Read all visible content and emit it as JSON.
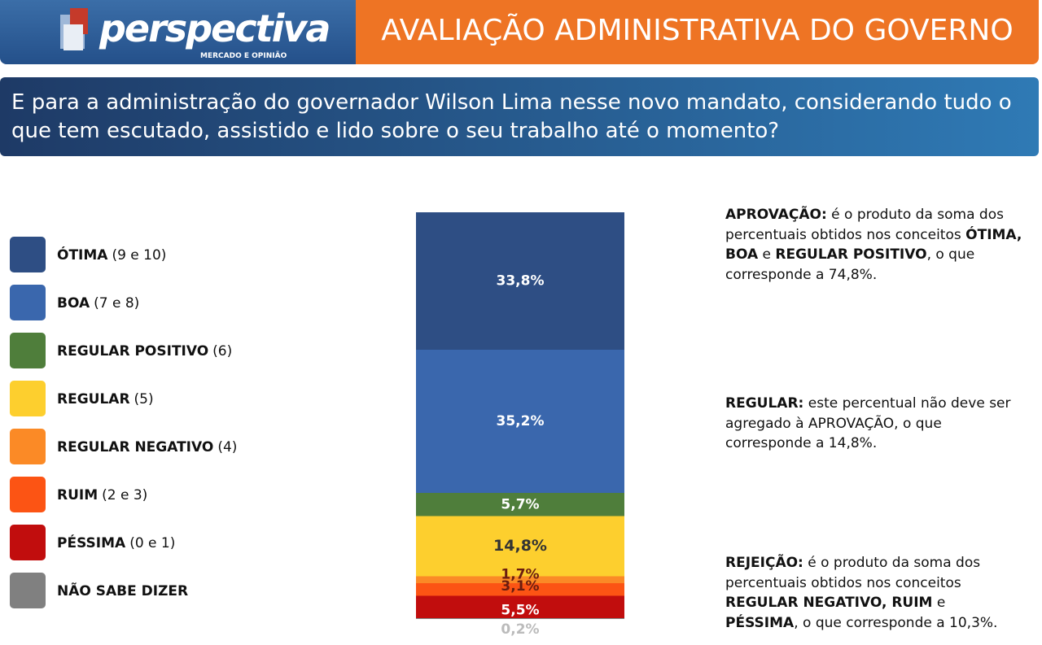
{
  "header": {
    "logo": "perspectiva",
    "logo_tagline": "MERCADO E OPINIÃO",
    "title": "AVALIAÇÃO ADMINISTRATIVA DO GOVERNO"
  },
  "question": "E para a administração do governador Wilson Lima nesse novo mandato, considerando tudo o que tem escutado, assistido e lido sobre o seu trabalho até o momento?",
  "chart_data": {
    "type": "stacked-bar",
    "series": [
      {
        "name": "ÓTIMA",
        "detail": "(9 e 10)",
        "color": "#2e4e84",
        "label_color": "#ffffff",
        "values": [
          33.8
        ],
        "value_labels": [
          "33,8%"
        ]
      },
      {
        "name": "BOA",
        "detail": "(7 e 8)",
        "color": "#3a67ad",
        "label_color": "#ffffff",
        "values": [
          35.2
        ],
        "value_labels": [
          "35,2%"
        ]
      },
      {
        "name": "REGULAR POSITIVO",
        "detail": "(6)",
        "color": "#4f7e3b",
        "label_color": "#ffffff",
        "values": [
          5.7
        ],
        "value_labels": [
          "5,7%"
        ]
      },
      {
        "name": "REGULAR",
        "detail": "(5)",
        "color": "#fdcf2e",
        "label_color": "#333333",
        "values": [
          14.8
        ],
        "value_labels": [
          "14,8%"
        ]
      },
      {
        "name": "REGULAR NEGATIVO",
        "detail": "(4)",
        "color": "#fb8a26",
        "label_color": "#6b1d10",
        "values": [
          1.7
        ],
        "value_labels": [
          "1,7%"
        ]
      },
      {
        "name": "RUIM",
        "detail": "(2 e 3)",
        "color": "#fc5414",
        "label_color": "#6b1d10",
        "values": [
          3.1
        ],
        "value_labels": [
          "3,1%"
        ]
      },
      {
        "name": "PÉSSIMA",
        "detail": "(0 e 1)",
        "color": "#c10d0d",
        "label_color": "#ffffff",
        "values": [
          5.5
        ],
        "value_labels": [
          "5,5%"
        ]
      },
      {
        "name": "NÃO SABE DIZER",
        "color": "#808080",
        "label_color": "#bbbbbb",
        "values": [
          0.2
        ],
        "value_labels": [
          "0,2%"
        ]
      }
    ]
  },
  "notes": [
    [
      {
        "text": "APROVAÇÃO:",
        "bold": true
      },
      {
        "text": " é o produto da soma dos percentuais obtidos nos conceitos ",
        "bold": false
      },
      {
        "text": "ÓTIMA, BOA",
        "bold": true
      },
      {
        "text": " e ",
        "bold": false
      },
      {
        "text": "REGULAR POSITIVO",
        "bold": true
      },
      {
        "text": ", o que corresponde a 74,8%.",
        "bold": false
      }
    ],
    [
      {
        "text": "REGULAR:",
        "bold": true
      },
      {
        "text": " este percentual não deve ser agregado à APROVAÇÃO, o que corresponde a 14,8%.",
        "bold": false
      }
    ],
    [
      {
        "text": "REJEIÇÃO:",
        "bold": true
      },
      {
        "text": " é o produto da soma dos percentuais obtidos nos conceitos ",
        "bold": false
      },
      {
        "text": "REGULAR NEGATIVO, RUIM",
        "bold": true
      },
      {
        "text": " e ",
        "bold": false
      },
      {
        "text": "PÉSSIMA",
        "bold": true
      },
      {
        "text": ", o que corresponde a 10,3%.",
        "bold": false
      }
    ]
  ]
}
